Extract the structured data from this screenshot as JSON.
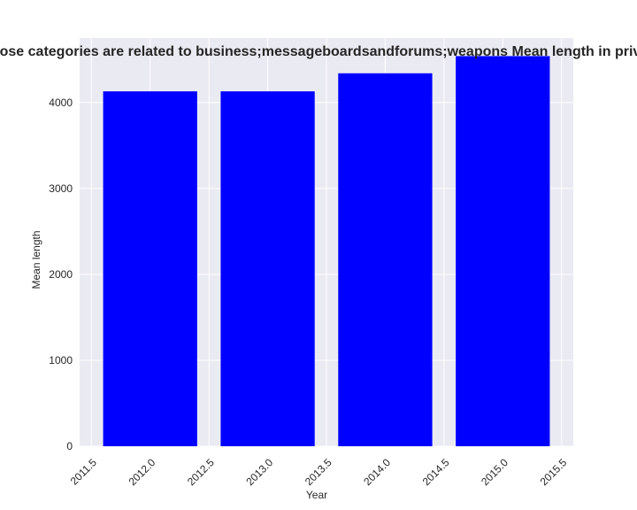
{
  "chart_data": {
    "type": "bar",
    "title": "Websites whose categories are related to business;messageboardsandforums;weapons Mean length in privacy policies",
    "xlabel": "Year",
    "ylabel": "Mean length",
    "x": [
      2012,
      2013,
      2014,
      2015
    ],
    "values": [
      4130,
      4130,
      4340,
      4540
    ],
    "bar_width": 0.8,
    "bar_color": "#0000ff",
    "xlim": [
      2011.4,
      2015.6
    ],
    "ylim": [
      0,
      4750
    ],
    "xticks": [
      2011.5,
      2012.0,
      2012.5,
      2013.0,
      2013.5,
      2014.0,
      2014.5,
      2015.0,
      2015.5
    ],
    "xtick_labels": [
      "2011.5",
      "2012.0",
      "2012.5",
      "2013.0",
      "2013.5",
      "2014.0",
      "2014.5",
      "2015.0",
      "2015.5"
    ],
    "yticks": [
      0,
      1000,
      2000,
      3000,
      4000
    ],
    "ytick_labels": [
      "0",
      "1000",
      "2000",
      "3000",
      "4000"
    ],
    "grid": true,
    "background_color": "#eaeaf2",
    "grid_color": "#ffffff"
  }
}
